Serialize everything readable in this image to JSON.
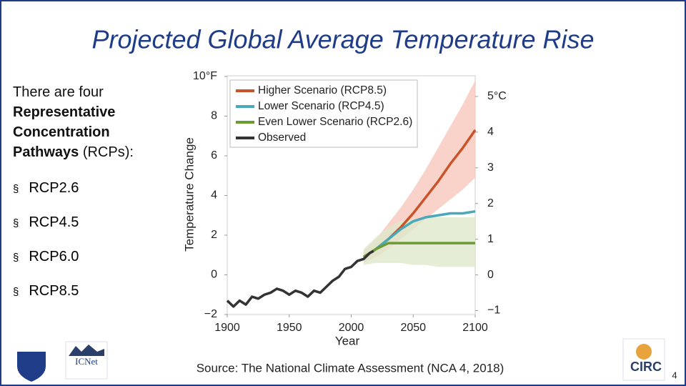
{
  "slide": {
    "title": "Projected Global Average Temperature Rise",
    "intro": {
      "text": "There are four",
      "bold": "Representative Concentration Pathways",
      "rest": "(RCPs):"
    },
    "bullets": [
      "RCP2.6",
      "RCP4.5",
      "RCP6.0",
      "RCP8.5"
    ],
    "source": "Source: The National Climate Assessment (NCA 4, 2018)",
    "page": "4",
    "logos": [
      "ICNet",
      "CIRC"
    ]
  },
  "chart_data": {
    "type": "line",
    "xlabel": "Year",
    "ylabel": "Temperature Change",
    "xlim": [
      1900,
      2100
    ],
    "xticks": [
      1900,
      1950,
      2000,
      2050,
      2100
    ],
    "ylim": [
      -2,
      10
    ],
    "yticks": [
      {
        "value": -2,
        "label": "−2"
      },
      0,
      2,
      4,
      6,
      8,
      {
        "value": 10,
        "label": "10°F"
      }
    ],
    "y2lim": [
      -1.11,
      5.56
    ],
    "y2ticks": [
      {
        "value": -1,
        "label": "−1"
      },
      0,
      1,
      2,
      3,
      4,
      {
        "value": 5,
        "label": "5°C"
      }
    ],
    "series": [
      {
        "name": "Higher Scenario (RCP8.5)",
        "color": "#c8542a",
        "band_color": "#f7c8bc",
        "x": [
          2010,
          2020,
          2030,
          2040,
          2050,
          2060,
          2070,
          2080,
          2090,
          2100
        ],
        "values": [
          0.9,
          1.3,
          1.8,
          2.4,
          3.1,
          3.9,
          4.7,
          5.6,
          6.4,
          7.3
        ],
        "lower": [
          0.6,
          0.9,
          1.3,
          1.8,
          2.3,
          2.8,
          3.3,
          3.8,
          4.3,
          4.9
        ],
        "upper": [
          1.2,
          1.8,
          2.6,
          3.4,
          4.3,
          5.3,
          6.4,
          7.5,
          8.6,
          9.8
        ]
      },
      {
        "name": "Lower Scenario (RCP4.5)",
        "color": "#4aa8b8",
        "x": [
          2010,
          2020,
          2030,
          2040,
          2050,
          2060,
          2070,
          2080,
          2090,
          2100
        ],
        "values": [
          0.9,
          1.3,
          1.8,
          2.3,
          2.7,
          2.9,
          3.0,
          3.1,
          3.1,
          3.2
        ]
      },
      {
        "name": "Even Lower Scenario (RCP2.6)",
        "color": "#6e9a34",
        "band_color": "#dfe9cc",
        "x": [
          2010,
          2020,
          2030,
          2040,
          2050,
          2060,
          2070,
          2080,
          2090,
          2100
        ],
        "values": [
          0.9,
          1.3,
          1.6,
          1.6,
          1.6,
          1.6,
          1.6,
          1.6,
          1.6,
          1.6
        ],
        "lower": [
          0.5,
          0.6,
          0.6,
          0.6,
          0.5,
          0.5,
          0.4,
          0.4,
          0.4,
          0.4
        ],
        "upper": [
          1.3,
          1.9,
          2.4,
          2.7,
          2.8,
          2.9,
          2.9,
          2.9,
          2.9,
          2.9
        ]
      },
      {
        "name": "Observed",
        "color": "#333333",
        "x": [
          1900,
          1905,
          1910,
          1915,
          1920,
          1925,
          1930,
          1935,
          1940,
          1945,
          1950,
          1955,
          1960,
          1965,
          1970,
          1975,
          1980,
          1985,
          1990,
          1995,
          2000,
          2005,
          2010,
          2015,
          2018
        ],
        "values": [
          -1.3,
          -1.6,
          -1.3,
          -1.5,
          -1.1,
          -1.2,
          -1.0,
          -0.9,
          -0.7,
          -0.8,
          -1.0,
          -0.8,
          -0.9,
          -1.1,
          -0.8,
          -0.9,
          -0.6,
          -0.3,
          -0.1,
          0.3,
          0.4,
          0.7,
          0.8,
          1.1,
          1.2
        ]
      }
    ]
  }
}
